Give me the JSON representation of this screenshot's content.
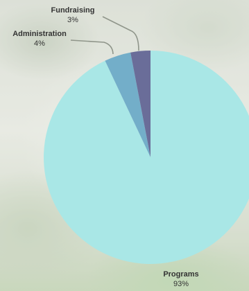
{
  "chart_data": {
    "type": "pie",
    "categories": [
      "Programs",
      "Administration",
      "Fundraising"
    ],
    "values": [
      93,
      4,
      3
    ],
    "value_labels": [
      "93%",
      "4%",
      "3%"
    ],
    "colors": [
      "#a9e7e6",
      "#73aec9",
      "#6a6d99"
    ],
    "start": "12 o'clock, clockwise",
    "legend": "none"
  }
}
